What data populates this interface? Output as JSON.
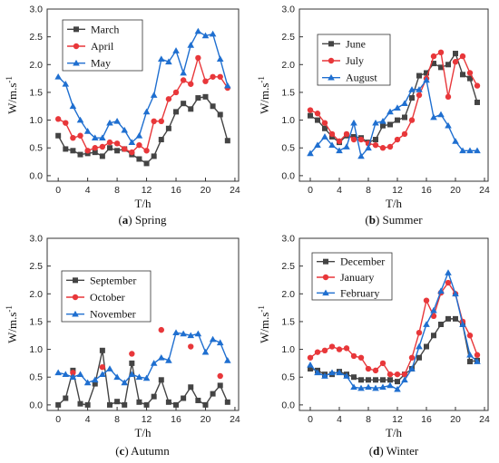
{
  "chart_data": [
    {
      "type": "line",
      "caption_letter": "a",
      "caption_text": " Spring",
      "xlabel": "T/h",
      "ylabel": "W/m.s",
      "ylabel_sup": "-1",
      "xlim": [
        -1.5,
        24.5
      ],
      "ylim": [
        -0.1,
        3.0
      ],
      "xticks": [
        0,
        4,
        8,
        12,
        16,
        20,
        24
      ],
      "yticks": [
        0.0,
        0.5,
        1.0,
        1.5,
        2.0,
        2.5,
        3.0
      ],
      "ytick_labels": [
        "0.0",
        "0.5",
        "1.0",
        "1.5",
        "2.0",
        "2.5",
        "3.0"
      ],
      "legend_position": "top-left",
      "x": [
        0,
        1,
        2,
        3,
        4,
        5,
        6,
        7,
        8,
        9,
        10,
        11,
        12,
        13,
        14,
        15,
        16,
        17,
        18,
        19,
        20,
        21,
        22,
        23
      ],
      "series": [
        {
          "name": "March",
          "color": "#444444",
          "marker": "square",
          "line": true,
          "values": [
            0.72,
            0.48,
            0.45,
            0.38,
            0.4,
            0.42,
            0.35,
            0.5,
            0.45,
            0.48,
            0.38,
            0.3,
            0.22,
            0.35,
            0.65,
            0.85,
            1.15,
            1.3,
            1.2,
            1.4,
            1.42,
            1.25,
            1.1,
            0.63
          ]
        },
        {
          "name": "April",
          "color": "#e8373a",
          "marker": "circle",
          "line": true,
          "values": [
            1.02,
            0.95,
            0.68,
            0.72,
            0.45,
            0.5,
            0.52,
            0.6,
            0.58,
            0.48,
            0.42,
            0.55,
            0.45,
            0.98,
            0.98,
            1.38,
            1.5,
            1.72,
            1.65,
            2.12,
            1.7,
            1.78,
            1.78,
            1.58
          ]
        },
        {
          "name": "May",
          "color": "#1f6fd0",
          "marker": "triangle",
          "line": true,
          "values": [
            1.78,
            1.65,
            1.25,
            1.0,
            0.8,
            0.68,
            0.68,
            0.95,
            0.98,
            0.82,
            0.6,
            0.72,
            1.15,
            1.45,
            2.1,
            2.05,
            2.25,
            1.85,
            2.35,
            2.6,
            2.52,
            2.55,
            2.1,
            1.62
          ]
        }
      ]
    },
    {
      "type": "line",
      "caption_letter": "b",
      "caption_text": " Summer",
      "xlabel": "T/h",
      "ylabel": "W/m.s",
      "ylabel_sup": "-1",
      "xlim": [
        -1.5,
        24.5
      ],
      "ylim": [
        -0.1,
        3.0
      ],
      "xticks": [
        0,
        4,
        8,
        12,
        16,
        20,
        24
      ],
      "yticks": [
        0.0,
        0.5,
        1.0,
        1.5,
        2.0,
        2.5,
        3.0
      ],
      "ytick_labels": [
        "0.0",
        "0.5",
        "1.0",
        "1.5",
        "2.0",
        "2.5",
        "3.0"
      ],
      "legend_position": "top-left",
      "x": [
        0,
        1,
        2,
        3,
        4,
        5,
        6,
        7,
        8,
        9,
        10,
        11,
        12,
        13,
        14,
        15,
        16,
        17,
        18,
        19,
        20,
        21,
        22,
        23
      ],
      "series": [
        {
          "name": "June",
          "color": "#444444",
          "marker": "square",
          "line": true,
          "values": [
            1.08,
            1.0,
            0.85,
            0.7,
            0.6,
            0.72,
            0.7,
            0.68,
            0.6,
            0.65,
            0.9,
            0.92,
            1.0,
            1.05,
            1.4,
            1.8,
            1.85,
            2.02,
            1.95,
            2.0,
            2.2,
            1.82,
            1.75,
            1.32
          ]
        },
        {
          "name": "July",
          "color": "#e8373a",
          "marker": "circle",
          "line": true,
          "values": [
            1.18,
            1.12,
            0.95,
            0.75,
            0.62,
            0.75,
            0.65,
            0.65,
            0.58,
            0.55,
            0.5,
            0.52,
            0.65,
            0.75,
            1.0,
            1.45,
            1.75,
            2.15,
            2.22,
            1.42,
            2.05,
            2.15,
            1.85,
            1.62
          ]
        },
        {
          "name": "August",
          "color": "#1f6fd0",
          "marker": "triangle",
          "line": true,
          "values": [
            0.4,
            0.55,
            0.7,
            0.55,
            0.45,
            0.52,
            0.95,
            0.35,
            0.5,
            0.95,
            0.98,
            1.15,
            1.22,
            1.3,
            1.55,
            1.55,
            1.72,
            1.05,
            1.1,
            0.9,
            0.62,
            0.45,
            0.45,
            0.45
          ]
        }
      ]
    },
    {
      "type": "line",
      "caption_letter": "c",
      "caption_text": " Autumn",
      "xlabel": "T/h",
      "ylabel": "W/m.s",
      "ylabel_sup": "-1",
      "xlim": [
        -1.5,
        24.5
      ],
      "ylim": [
        -0.1,
        3.0
      ],
      "xticks": [
        0,
        4,
        8,
        12,
        16,
        20,
        24
      ],
      "yticks": [
        0.0,
        0.5,
        1.0,
        1.5,
        2.0,
        2.5,
        3.0
      ],
      "ytick_labels": [
        "0.0",
        "0.5",
        "1.0",
        "1.5",
        "2.0",
        "2.5",
        "3.0"
      ],
      "legend_position": "top-center",
      "x": [
        0,
        1,
        2,
        3,
        4,
        5,
        6,
        7,
        8,
        9,
        10,
        11,
        12,
        13,
        14,
        15,
        16,
        17,
        18,
        19,
        20,
        21,
        22,
        23
      ],
      "series": [
        {
          "name": "September",
          "color": "#444444",
          "marker": "square",
          "line": true,
          "values": [
            0.0,
            0.12,
            0.62,
            0.02,
            0.0,
            0.38,
            0.98,
            0.0,
            0.06,
            0.0,
            0.75,
            0.05,
            0.0,
            0.15,
            0.45,
            0.05,
            0.0,
            0.12,
            0.32,
            0.08,
            0.0,
            0.2,
            0.35,
            0.05
          ]
        },
        {
          "name": "October",
          "color": "#e8373a",
          "marker": "circle",
          "line": false,
          "values": [
            null,
            null,
            0.58,
            null,
            null,
            null,
            0.68,
            null,
            null,
            null,
            0.92,
            null,
            null,
            null,
            1.35,
            null,
            null,
            null,
            1.05,
            null,
            null,
            null,
            0.52,
            null
          ]
        },
        {
          "name": "November",
          "color": "#1f6fd0",
          "marker": "triangle",
          "line": true,
          "values": [
            0.58,
            0.55,
            0.5,
            0.55,
            0.4,
            0.45,
            0.55,
            0.65,
            0.5,
            0.4,
            0.55,
            0.5,
            0.48,
            0.75,
            0.85,
            0.8,
            1.3,
            1.28,
            1.25,
            1.28,
            0.95,
            1.18,
            1.12,
            0.8
          ]
        }
      ]
    },
    {
      "type": "line",
      "caption_letter": "d",
      "caption_text": " Winter",
      "xlabel": "T/h",
      "ylabel": "W/m.s",
      "ylabel_sup": "-1",
      "xlim": [
        -1.5,
        24.5
      ],
      "ylim": [
        -0.1,
        3.0
      ],
      "xticks": [
        0,
        4,
        8,
        12,
        16,
        20,
        24
      ],
      "yticks": [
        0.0,
        0.5,
        1.0,
        1.5,
        2.0,
        2.5,
        3.0
      ],
      "ytick_labels": [
        "0.0",
        "0.5",
        "1.0",
        "1.5",
        "2.0",
        "2.5",
        "3.0"
      ],
      "legend_position": "top-left",
      "x": [
        0,
        1,
        2,
        3,
        4,
        5,
        6,
        7,
        8,
        9,
        10,
        11,
        12,
        13,
        14,
        15,
        16,
        17,
        18,
        19,
        20,
        21,
        22,
        23
      ],
      "series": [
        {
          "name": "December",
          "color": "#444444",
          "marker": "square",
          "line": true,
          "values": [
            0.65,
            0.62,
            0.55,
            0.55,
            0.6,
            0.55,
            0.5,
            0.45,
            0.45,
            0.45,
            0.45,
            0.45,
            0.42,
            0.55,
            0.65,
            0.85,
            1.05,
            1.25,
            1.45,
            1.55,
            1.55,
            1.45,
            0.78,
            0.8
          ]
        },
        {
          "name": "January",
          "color": "#e8373a",
          "marker": "circle",
          "line": true,
          "values": [
            0.85,
            0.95,
            0.98,
            1.05,
            1.0,
            1.02,
            0.88,
            0.85,
            0.65,
            0.62,
            0.75,
            0.55,
            0.55,
            0.55,
            0.85,
            1.3,
            1.88,
            1.6,
            2.02,
            2.2,
            2.0,
            1.5,
            1.25,
            0.9
          ]
        },
        {
          "name": "February",
          "color": "#1f6fd0",
          "marker": "triangle",
          "line": true,
          "values": [
            0.72,
            0.58,
            0.52,
            0.58,
            0.58,
            0.52,
            0.32,
            0.3,
            0.32,
            0.3,
            0.32,
            0.35,
            0.28,
            0.45,
            0.65,
            1.05,
            1.45,
            1.7,
            2.05,
            2.38,
            2.0,
            1.45,
            0.9,
            0.78
          ]
        }
      ]
    }
  ]
}
